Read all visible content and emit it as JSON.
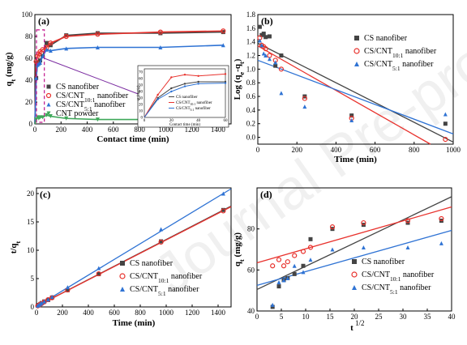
{
  "watermark": "Journal Pre-proof",
  "colors": {
    "cs": "#444444",
    "cnt10": "#e8322d",
    "cnt5": "#2f73d4",
    "cntpowder": "#3fa85a",
    "dash": "#c0148c"
  },
  "chart_data": [
    {
      "panel": "(a)",
      "type": "line",
      "xlabel": "Contact time (min)",
      "ylabel": "qt (mg/g)",
      "xlim": [
        0,
        1500
      ],
      "ylim": [
        0,
        100
      ],
      "xticks": [
        0,
        200,
        400,
        600,
        800,
        1000,
        1200,
        1400
      ],
      "yticks": [
        0,
        20,
        40,
        60,
        80,
        100
      ],
      "x": [
        0,
        10,
        20,
        30,
        40,
        60,
        90,
        120,
        240,
        480,
        960,
        1440
      ],
      "series": [
        {
          "name": "CS nanofiber",
          "key": "cs",
          "marker": "square",
          "values": [
            0,
            42,
            55,
            56,
            58,
            62,
            74,
            72,
            81,
            83,
            83,
            84
          ]
        },
        {
          "name": "CS/CNT10:1 nanofiber",
          "key": "cnt10",
          "marker": "circle",
          "values": [
            0,
            57,
            62,
            64,
            66,
            68,
            70,
            74,
            80,
            82,
            84,
            85
          ]
        },
        {
          "name": "CS/CNT5:1 nanofiber",
          "key": "cnt5",
          "marker": "triangle",
          "values": [
            0,
            42,
            54,
            55,
            56,
            62,
            68,
            67,
            69,
            70,
            70,
            72
          ]
        },
        {
          "name": "CNT powder",
          "key": "cntpowder",
          "marker": "tri-down",
          "values": [
            0,
            4,
            6,
            5,
            6,
            6,
            8,
            7,
            5,
            4,
            4,
            5
          ]
        }
      ],
      "legend": [
        {
          "label": "CS nanofiber",
          "sub": "",
          "tail": "",
          "key": "cs",
          "marker": "square"
        },
        {
          "label": "CS/CNT",
          "sub": "10:1",
          "tail": " nanofiber",
          "key": "cnt10",
          "marker": "circle"
        },
        {
          "label": "CS/CNT",
          "sub": "5:1",
          "tail": " nanofiber",
          "key": "cnt5",
          "marker": "triangle"
        },
        {
          "label": "CNT powder",
          "sub": "",
          "tail": "",
          "key": "cntpowder",
          "marker": "tri-down"
        }
      ],
      "inset": {
        "xlabel": "Contact time (min)",
        "ylabel": "qt (mg/g)",
        "xticks": [
          0,
          20,
          40,
          60
        ],
        "yticks": [
          0,
          10,
          20,
          30,
          40,
          50,
          60,
          70
        ],
        "xlim": [
          0,
          60
        ],
        "ylim": [
          0,
          75
        ],
        "x": [
          0,
          10,
          20,
          30,
          40,
          60
        ],
        "series": [
          {
            "key": "cs",
            "values": [
              0,
              30,
              45,
              52,
              55,
              55
            ]
          },
          {
            "key": "cnt10",
            "values": [
              0,
              35,
              62,
              66,
              64,
              67
            ]
          },
          {
            "key": "cnt5",
            "values": [
              0,
              28,
              40,
              48,
              52,
              53
            ]
          }
        ],
        "legend": [
          {
            "label": "CS nanofiber",
            "sub": "",
            "tail": "",
            "key": "cs"
          },
          {
            "label": "CS/CNT",
            "sub": "10:1",
            "tail": " nanofiber",
            "key": "cnt10"
          },
          {
            "label": "CS/CNT",
            "sub": "5:1",
            "tail": " nanofiber",
            "key": "cnt5"
          }
        ]
      }
    },
    {
      "panel": "(b)",
      "type": "scatter",
      "xlabel": "Time (min)",
      "ylabel": "Log (qe-qt)",
      "xlim": [
        0,
        1000
      ],
      "ylim": [
        -0.1,
        1.8
      ],
      "xticks": [
        0,
        200,
        400,
        600,
        800,
        1000
      ],
      "yticks": [
        0.0,
        0.2,
        0.4,
        0.6,
        0.8,
        1.0,
        1.2,
        1.4,
        1.6,
        1.8
      ],
      "series": [
        {
          "name": "CS nanofiber",
          "key": "cs",
          "marker": "square",
          "x": [
            10,
            20,
            30,
            40,
            60,
            90,
            120,
            240,
            480,
            960
          ],
          "y": [
            1.62,
            1.5,
            1.52,
            1.47,
            1.48,
            1.05,
            1.2,
            0.6,
            0.32,
            0.2
          ],
          "fit": [
            1.38,
            -0.00145
          ]
        },
        {
          "name": "CS/CNT10:1 nanofiber",
          "key": "cnt10",
          "marker": "circle",
          "x": [
            10,
            20,
            30,
            40,
            60,
            90,
            120,
            240,
            480,
            960
          ],
          "y": [
            1.46,
            1.35,
            1.33,
            1.3,
            1.2,
            1.13,
            1.0,
            0.57,
            0.28,
            -0.03
          ],
          "fit": [
            1.34,
            -0.00163
          ]
        },
        {
          "name": "CS/CNT5:1 nanofiber",
          "key": "cnt5",
          "marker": "triangle",
          "x": [
            10,
            20,
            30,
            40,
            60,
            90,
            120,
            240,
            480,
            960
          ],
          "y": [
            1.42,
            1.35,
            1.23,
            1.2,
            1.15,
            1.1,
            0.65,
            0.45,
            0.25,
            0.34
          ],
          "fit": [
            1.13,
            -0.00108
          ]
        }
      ],
      "legend": [
        {
          "label": "CS nanofiber",
          "sub": "",
          "tail": "",
          "key": "cs",
          "marker": "square"
        },
        {
          "label": "CS/CNT",
          "sub": "10:1",
          "tail": " nanofiber",
          "key": "cnt10",
          "marker": "circle"
        },
        {
          "label": "CS/CNT",
          "sub": "5:1",
          "tail": " nanofiber",
          "key": "cnt5",
          "marker": "triangle"
        }
      ]
    },
    {
      "panel": "(c)",
      "type": "scatter",
      "xlabel": "Time (min)",
      "ylabel": "t/qt",
      "xlim": [
        0,
        1500
      ],
      "ylim": [
        0,
        21
      ],
      "xticks": [
        0,
        200,
        400,
        600,
        800,
        1000,
        1200,
        1400
      ],
      "yticks": [
        0,
        5,
        10,
        15,
        20
      ],
      "series": [
        {
          "name": "CS nanofiber",
          "key": "cs",
          "marker": "square",
          "x": [
            10,
            20,
            30,
            40,
            60,
            90,
            120,
            240,
            480,
            960,
            1440
          ],
          "y": [
            0.24,
            0.36,
            0.53,
            0.69,
            0.97,
            1.22,
            1.67,
            2.96,
            5.78,
            11.57,
            17.1
          ],
          "fit": [
            0.12,
            0.01178
          ]
        },
        {
          "name": "CS/CNT10:1 nanofiber",
          "key": "cnt10",
          "marker": "circle",
          "x": [
            10,
            20,
            30,
            40,
            60,
            90,
            120,
            240,
            480,
            960,
            1440
          ],
          "y": [
            0.18,
            0.32,
            0.47,
            0.61,
            0.88,
            1.29,
            1.62,
            3.0,
            5.85,
            11.43,
            16.94
          ],
          "fit": [
            0.1,
            0.01172
          ]
        },
        {
          "name": "CS/CNT5:1 nanofiber",
          "key": "cnt5",
          "marker": "triangle",
          "x": [
            10,
            20,
            30,
            40,
            60,
            90,
            120,
            240,
            480,
            960,
            1440
          ],
          "y": [
            0.24,
            0.37,
            0.55,
            0.71,
            0.97,
            1.32,
            1.79,
            3.48,
            6.86,
            13.71,
            20.0
          ],
          "fit": [
            0.08,
            0.01384
          ]
        }
      ],
      "legend": [
        {
          "label": "CS nanofiber",
          "sub": "",
          "tail": "",
          "key": "cs",
          "marker": "square"
        },
        {
          "label": "CS/CNT",
          "sub": "10:1",
          "tail": " nanofiber",
          "key": "cnt10",
          "marker": "circle"
        },
        {
          "label": "CS/CNT",
          "sub": "5:1",
          "tail": " nanofiber",
          "key": "cnt5",
          "marker": "triangle"
        }
      ]
    },
    {
      "panel": "(d)",
      "type": "scatter",
      "xlabel": "t1/2",
      "ylabel": "qt (mg/g)",
      "xlim": [
        0,
        40
      ],
      "ylim": [
        40,
        100
      ],
      "xticks": [
        0,
        5,
        10,
        15,
        20,
        25,
        30,
        35,
        40
      ],
      "yticks": [
        40,
        60,
        80
      ],
      "series": [
        {
          "name": "CS nanofiber",
          "key": "cs",
          "marker": "square",
          "x": [
            3.2,
            4.5,
            5.5,
            6.3,
            7.7,
            9.5,
            11.0,
            15.5,
            21.9,
            31.0,
            37.9
          ],
          "y": [
            42,
            52,
            55,
            56,
            58,
            62,
            75,
            80,
            82,
            83,
            84
          ],
          "fit": [
            50.5,
            1.13
          ]
        },
        {
          "name": "CS/CNT10:1 nanofiber",
          "key": "cnt10",
          "marker": "circle",
          "x": [
            3.2,
            4.5,
            5.5,
            6.3,
            7.7,
            9.5,
            11.0,
            15.5,
            21.9,
            31.0,
            37.9
          ],
          "y": [
            62,
            65,
            62,
            64,
            67,
            69,
            71,
            81,
            83,
            84,
            85
          ],
          "fit": [
            63.5,
            0.68
          ]
        },
        {
          "name": "CS/CNT5:1 nanofiber",
          "key": "cnt5",
          "marker": "triangle",
          "x": [
            3.2,
            4.5,
            5.5,
            6.3,
            7.7,
            9.5,
            11.0,
            15.5,
            21.9,
            31.0,
            37.9
          ],
          "y": [
            43,
            54,
            55,
            56,
            62,
            59,
            65,
            70,
            71,
            71,
            73
          ],
          "fit": [
            52.5,
            0.67
          ]
        }
      ],
      "legend": [
        {
          "label": "CS nanofiber",
          "sub": "",
          "tail": "",
          "key": "cs",
          "marker": "square"
        },
        {
          "label": "CS/CNT",
          "sub": "10:1",
          "tail": " nanofiber",
          "key": "cnt10",
          "marker": "circle"
        },
        {
          "label": "CS/CNT",
          "sub": "5:1",
          "tail": " nanofiber",
          "key": "cnt5",
          "marker": "triangle"
        }
      ]
    }
  ]
}
